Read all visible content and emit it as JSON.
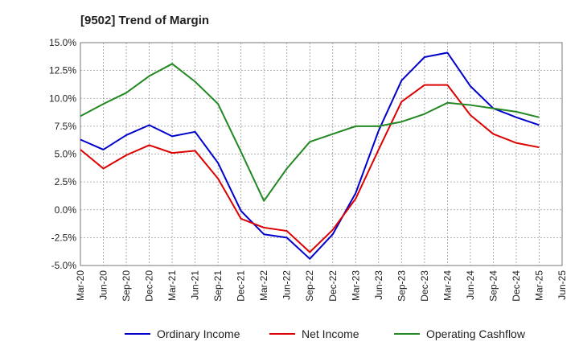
{
  "chart_data": {
    "type": "line",
    "title": "[9502]  Trend of Margin",
    "xlabel": "",
    "ylabel": "",
    "x": [
      "Mar-20",
      "Jun-20",
      "Sep-20",
      "Dec-20",
      "Mar-21",
      "Jun-21",
      "Sep-21",
      "Dec-21",
      "Mar-22",
      "Jun-22",
      "Sep-22",
      "Dec-22",
      "Mar-23",
      "Jun-23",
      "Sep-23",
      "Dec-23",
      "Mar-24",
      "Jun-24",
      "Sep-24",
      "Dec-24",
      "Mar-25",
      "Jun-25"
    ],
    "ylim": [
      -5.0,
      15.0
    ],
    "yticks": [
      -5.0,
      -2.5,
      0.0,
      2.5,
      5.0,
      7.5,
      10.0,
      12.5,
      15.0
    ],
    "ytick_labels": [
      "-5.0%",
      "-2.5%",
      "0.0%",
      "2.5%",
      "5.0%",
      "7.5%",
      "10.0%",
      "12.5%",
      "15.0%"
    ],
    "grid": true,
    "legend_position": "bottom",
    "series": [
      {
        "name": "Ordinary Income",
        "color": "#0000cc",
        "values": [
          6.3,
          5.4,
          6.7,
          7.6,
          6.6,
          7.0,
          4.2,
          -0.1,
          -2.2,
          -2.5,
          -4.4,
          -2.2,
          1.5,
          7.1,
          11.6,
          13.7,
          14.1,
          11.1,
          9.1,
          8.3,
          7.6,
          null
        ]
      },
      {
        "name": "Net Income",
        "color": "#dd0000",
        "values": [
          5.4,
          3.7,
          4.9,
          5.8,
          5.1,
          5.3,
          2.8,
          -0.8,
          -1.6,
          -1.9,
          -3.8,
          -1.8,
          1.0,
          5.4,
          9.7,
          11.2,
          11.2,
          8.5,
          6.8,
          6.0,
          5.6,
          null
        ]
      },
      {
        "name": "Operating Cashflow",
        "color": "#228822",
        "values": [
          8.4,
          9.5,
          10.5,
          12.0,
          13.1,
          11.5,
          9.5,
          5.2,
          0.8,
          3.7,
          6.1,
          6.8,
          7.5,
          7.5,
          7.9,
          8.6,
          9.6,
          9.4,
          9.1,
          8.8,
          8.3,
          null
        ]
      }
    ]
  }
}
